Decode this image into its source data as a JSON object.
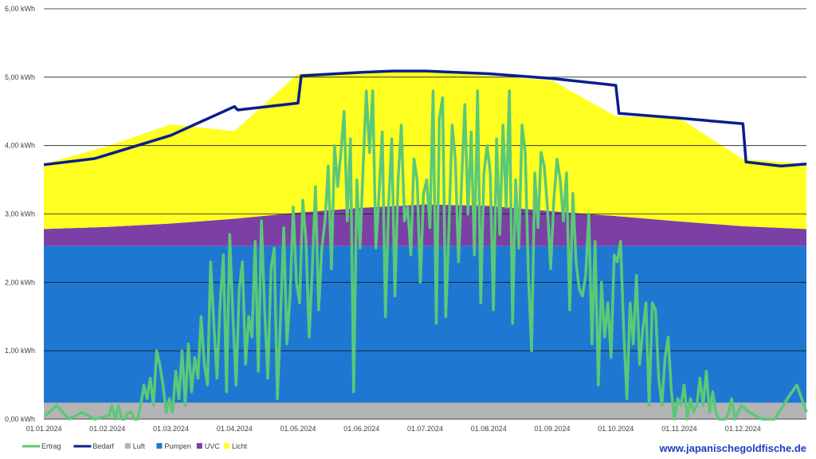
{
  "chart_data": {
    "type": "area",
    "title": "",
    "xlabel": "",
    "ylabel": "",
    "ylim": [
      0,
      6
    ],
    "y_ticks": [
      "0,00 kWh",
      "1,00 kWh",
      "2,00 kWh",
      "3,00 kWh",
      "4,00 kWh",
      "5,00 kWh",
      "6,00 kWh"
    ],
    "x_ticks": [
      "01.01.2024",
      "01.02.2024",
      "01.03.2024",
      "01.04.2024",
      "01.05.2024",
      "01.06.2024",
      "01.07.2024",
      "01.08.2024",
      "01.09.2024",
      "01.10.2024",
      "01.11.2024",
      "01.12.2024"
    ],
    "grid": true,
    "legend_position": "bottom-left",
    "series": [
      {
        "name": "Luft",
        "kind": "stacked-area",
        "color": "#b4b4b4",
        "months": [
          0.24,
          0.24,
          0.24,
          0.24,
          0.24,
          0.24,
          0.24,
          0.24,
          0.24,
          0.24,
          0.24,
          0.24,
          0.24
        ]
      },
      {
        "name": "Pumpen",
        "kind": "stacked-area",
        "color": "#1e78d2",
        "months": [
          2.29,
          2.29,
          2.29,
          2.29,
          2.29,
          2.29,
          2.29,
          2.29,
          2.29,
          2.29,
          2.29,
          2.29,
          2.29
        ]
      },
      {
        "name": "UVC",
        "kind": "stacked-area",
        "color": "#7b3fa6",
        "months": [
          0.25,
          0.28,
          0.33,
          0.4,
          0.49,
          0.56,
          0.61,
          0.59,
          0.51,
          0.44,
          0.36,
          0.29,
          0.25
        ]
      },
      {
        "name": "Licht",
        "kind": "stacked-area",
        "color": "#ffff22",
        "months": [
          0.95,
          1.18,
          1.45,
          1.28,
          2.03,
          1.98,
          1.95,
          1.9,
          1.91,
          1.46,
          1.51,
          0.98,
          0.95
        ]
      },
      {
        "name": "Bedarf",
        "kind": "line",
        "color": "#0a1e8c",
        "points": [
          [
            0,
            3.72
          ],
          [
            0.8,
            3.81
          ],
          [
            2.0,
            4.15
          ],
          [
            3.0,
            4.57
          ],
          [
            3.05,
            4.52
          ],
          [
            4.0,
            4.62
          ],
          [
            4.05,
            5.02
          ],
          [
            5.0,
            5.07
          ],
          [
            5.5,
            5.09
          ],
          [
            6.0,
            5.09
          ],
          [
            7.0,
            5.05
          ],
          [
            8.0,
            4.98
          ],
          [
            9.0,
            4.88
          ],
          [
            9.05,
            4.47
          ],
          [
            10.0,
            4.4
          ],
          [
            11.0,
            4.32
          ],
          [
            11.05,
            3.76
          ],
          [
            11.6,
            3.7
          ],
          [
            12.0,
            3.73
          ]
        ]
      },
      {
        "name": "Ertrag",
        "kind": "line",
        "color": "#5ac878",
        "months": [
          [
            0.05,
            0.2,
            0.0,
            0.2,
            0.0,
            0.0,
            0.1,
            0.1,
            0.0,
            0.0,
            0.2,
            0.5,
            0.3,
            0.6,
            0.2,
            1.0,
            0.8,
            0.5,
            0.1,
            0.3
          ],
          [
            0.1,
            0.7,
            0.3,
            1.0,
            0.2,
            1.1,
            0.4,
            0.9,
            0.6,
            1.5,
            0.8,
            0.5,
            2.3,
            1.4,
            0.6,
            1.7,
            2.4,
            0.4,
            2.7,
            1.5
          ],
          [
            0.5,
            1.9,
            2.3,
            0.8,
            1.5,
            1.2,
            2.6,
            0.7,
            2.9,
            1.6,
            0.6,
            2.2,
            2.5,
            0.3,
            1.5,
            2.8,
            1.1,
            1.8,
            3.1,
            2.0
          ],
          [
            1.7,
            3.2,
            2.6,
            1.2,
            2.2,
            3.4,
            1.6,
            2.5,
            2.9,
            3.7,
            2.2,
            4.0,
            3.4,
            3.9,
            4.5,
            2.9,
            4.1,
            0.4,
            3.5,
            2.5
          ],
          [
            3.7,
            4.8,
            3.9,
            4.8,
            2.5,
            3.3,
            4.2,
            1.5,
            3.1,
            4.1,
            1.8,
            3.5,
            4.3,
            2.9,
            3.1,
            2.4,
            3.8,
            3.5,
            2.0,
            3.3
          ],
          [
            3.5,
            2.8,
            4.8,
            1.4,
            4.4,
            4.7,
            1.5,
            2.8,
            4.3,
            3.8,
            2.3,
            3.5,
            4.6,
            3.0,
            4.2,
            2.4,
            4.8,
            1.7,
            3.6,
            4.0
          ],
          [
            3.6,
            1.6,
            4.1,
            2.7,
            4.3,
            3.1,
            4.8,
            1.4,
            3.5,
            2.5,
            4.3,
            3.9,
            2.1,
            1.0,
            3.6,
            2.8,
            3.9,
            3.7,
            3.1,
            2.2
          ],
          [
            3.2,
            3.8,
            3.5,
            2.9,
            3.6,
            1.6,
            3.3,
            2.3,
            1.9,
            1.8,
            2.1,
            3.0,
            1.1,
            2.6,
            0.5,
            2.0,
            1.2,
            1.7,
            0.9,
            2.4
          ],
          [
            2.3,
            2.6,
            1.3,
            0.3,
            1.7,
            1.1,
            2.1,
            0.8,
            1.3,
            1.7,
            0.2,
            1.7,
            1.6,
            0.6,
            0.2,
            0.9,
            1.2,
            0.4,
            0.0,
            0.3
          ],
          [
            0.2,
            0.5,
            0.0,
            0.3,
            0.1,
            0.2,
            0.6,
            0.2,
            0.7,
            0.1,
            0.4,
            0.1,
            0.0,
            0.0,
            0.0,
            0.1,
            0.3,
            0.0,
            0.1,
            0.2
          ]
        ]
      }
    ],
    "legend": [
      {
        "label": "Ertrag",
        "swatch": "line",
        "color": "#5ac878"
      },
      {
        "label": "Bedarf",
        "swatch": "line",
        "color": "#0a1e8c"
      },
      {
        "label": "Luft",
        "swatch": "box",
        "color": "#b4b4b4"
      },
      {
        "label": "Pumpen",
        "swatch": "box",
        "color": "#1e78d2"
      },
      {
        "label": "UVC",
        "swatch": "box",
        "color": "#7b3fa6"
      },
      {
        "label": "Licht",
        "swatch": "box",
        "color": "#ffff22"
      }
    ]
  },
  "watermark": "www.japanischegoldfische.de"
}
